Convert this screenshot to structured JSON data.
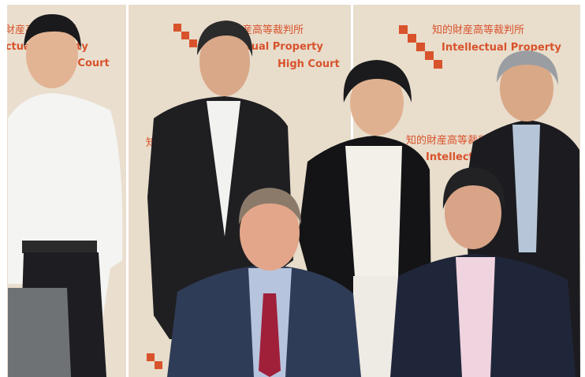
{
  "backdrop": {
    "jp": "知的財産高等裁判所",
    "en_line1": "Intellectual Property",
    "en_line2": "High Court"
  }
}
